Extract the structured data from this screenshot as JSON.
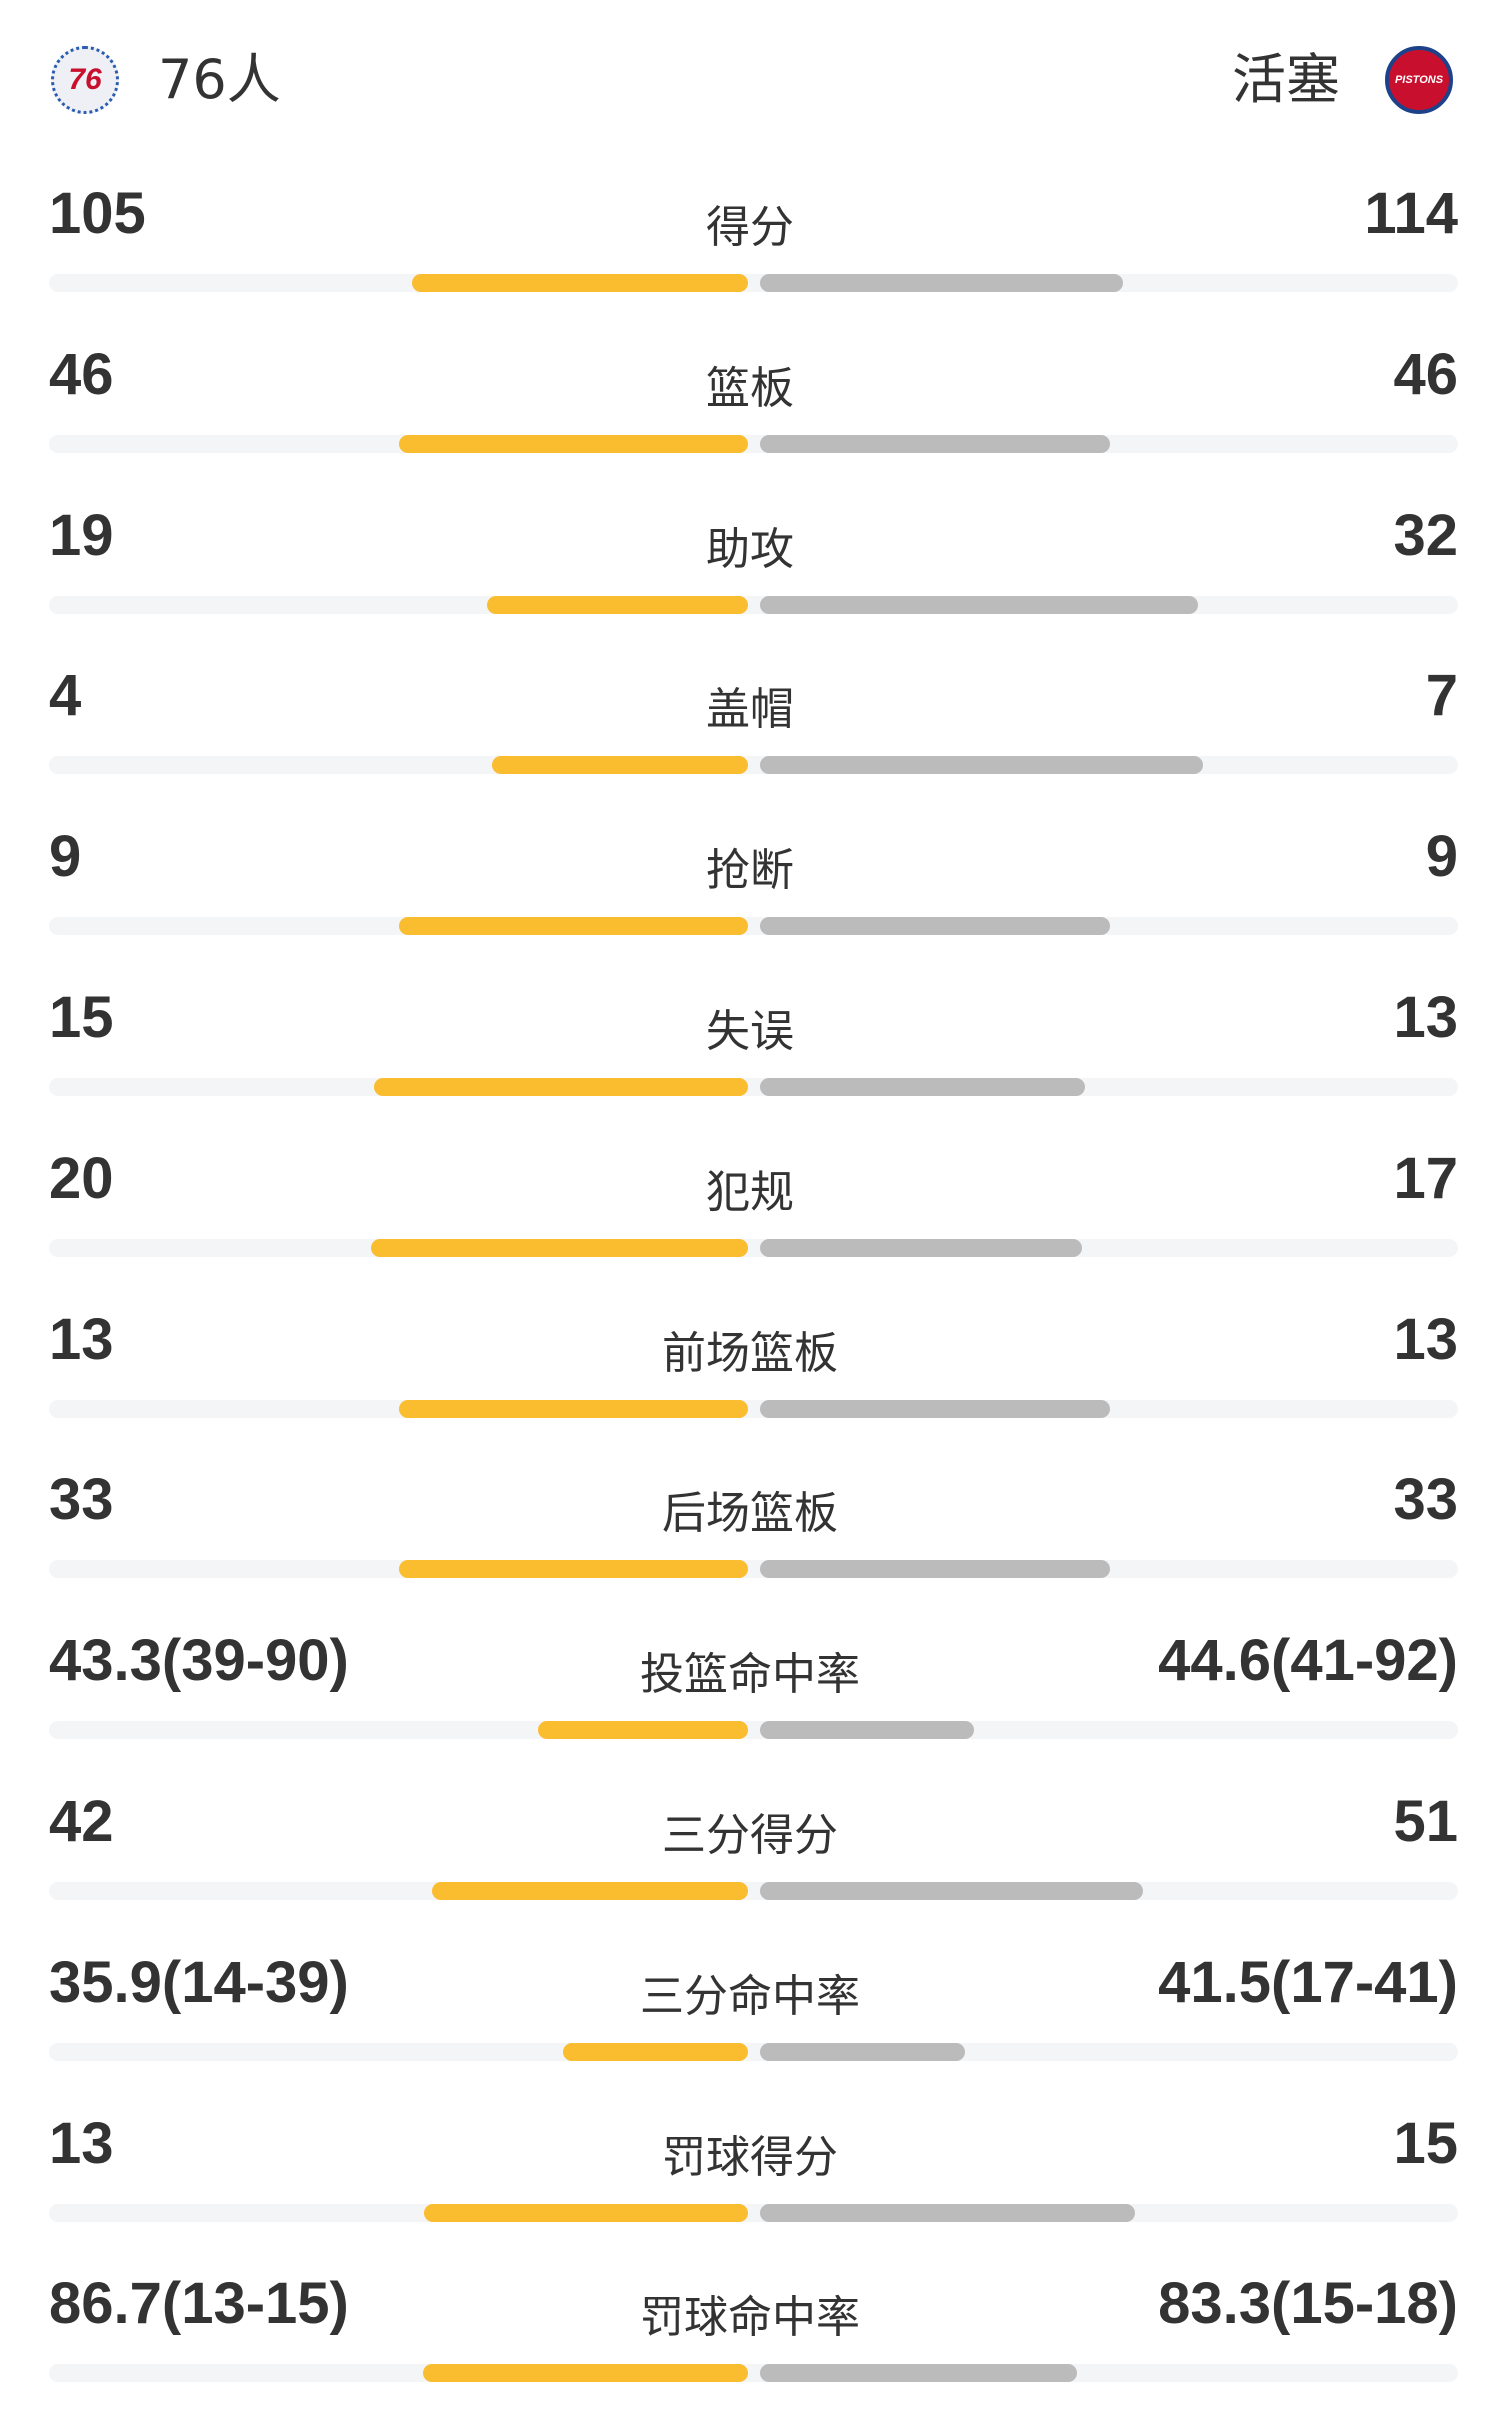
{
  "header": {
    "home": {
      "name": "76人",
      "logo_text": "76",
      "logo_icon": "sixers-logo"
    },
    "away": {
      "name": "活塞",
      "logo_text": "PISTONS",
      "logo_icon": "pistons-logo"
    }
  },
  "colors": {
    "home_bar": "#fbbd30",
    "away_bar": "#bbbbbb",
    "track": "#f4f5f7"
  },
  "stats": [
    {
      "label": "得分",
      "home": "105",
      "away": "114",
      "home_fill": 0.48,
      "away_fill": 0.52
    },
    {
      "label": "篮板",
      "home": "46",
      "away": "46",
      "home_fill": 0.5,
      "away_fill": 0.5
    },
    {
      "label": "助攻",
      "home": "19",
      "away": "32",
      "home_fill": 0.374,
      "away_fill": 0.626
    },
    {
      "label": "盖帽",
      "home": "4",
      "away": "7",
      "home_fill": 0.366,
      "away_fill": 0.634
    },
    {
      "label": "抢断",
      "home": "9",
      "away": "9",
      "home_fill": 0.5,
      "away_fill": 0.5
    },
    {
      "label": "失误",
      "home": "15",
      "away": "13",
      "home_fill": 0.535,
      "away_fill": 0.465
    },
    {
      "label": "犯规",
      "home": "20",
      "away": "17",
      "home_fill": 0.54,
      "away_fill": 0.46
    },
    {
      "label": "前场篮板",
      "home": "13",
      "away": "13",
      "home_fill": 0.5,
      "away_fill": 0.5
    },
    {
      "label": "后场篮板",
      "home": "33",
      "away": "33",
      "home_fill": 0.5,
      "away_fill": 0.5
    },
    {
      "label": "投篮命中率",
      "home": "43.3(39-90)",
      "away": "44.6(41-92)",
      "home_fill": 0.3,
      "away_fill": 0.306
    },
    {
      "label": "三分得分",
      "home": "42",
      "away": "51",
      "home_fill": 0.452,
      "away_fill": 0.548
    },
    {
      "label": "三分命中率",
      "home": "35.9(14-39)",
      "away": "41.5(17-41)",
      "home_fill": 0.264,
      "away_fill": 0.293
    },
    {
      "label": "罚球得分",
      "home": "13",
      "away": "15",
      "home_fill": 0.464,
      "away_fill": 0.536
    },
    {
      "label": "罚球命中率",
      "home": "86.7(13-15)",
      "away": "83.3(15-18)",
      "home_fill": 0.465,
      "away_fill": 0.454
    }
  ]
}
